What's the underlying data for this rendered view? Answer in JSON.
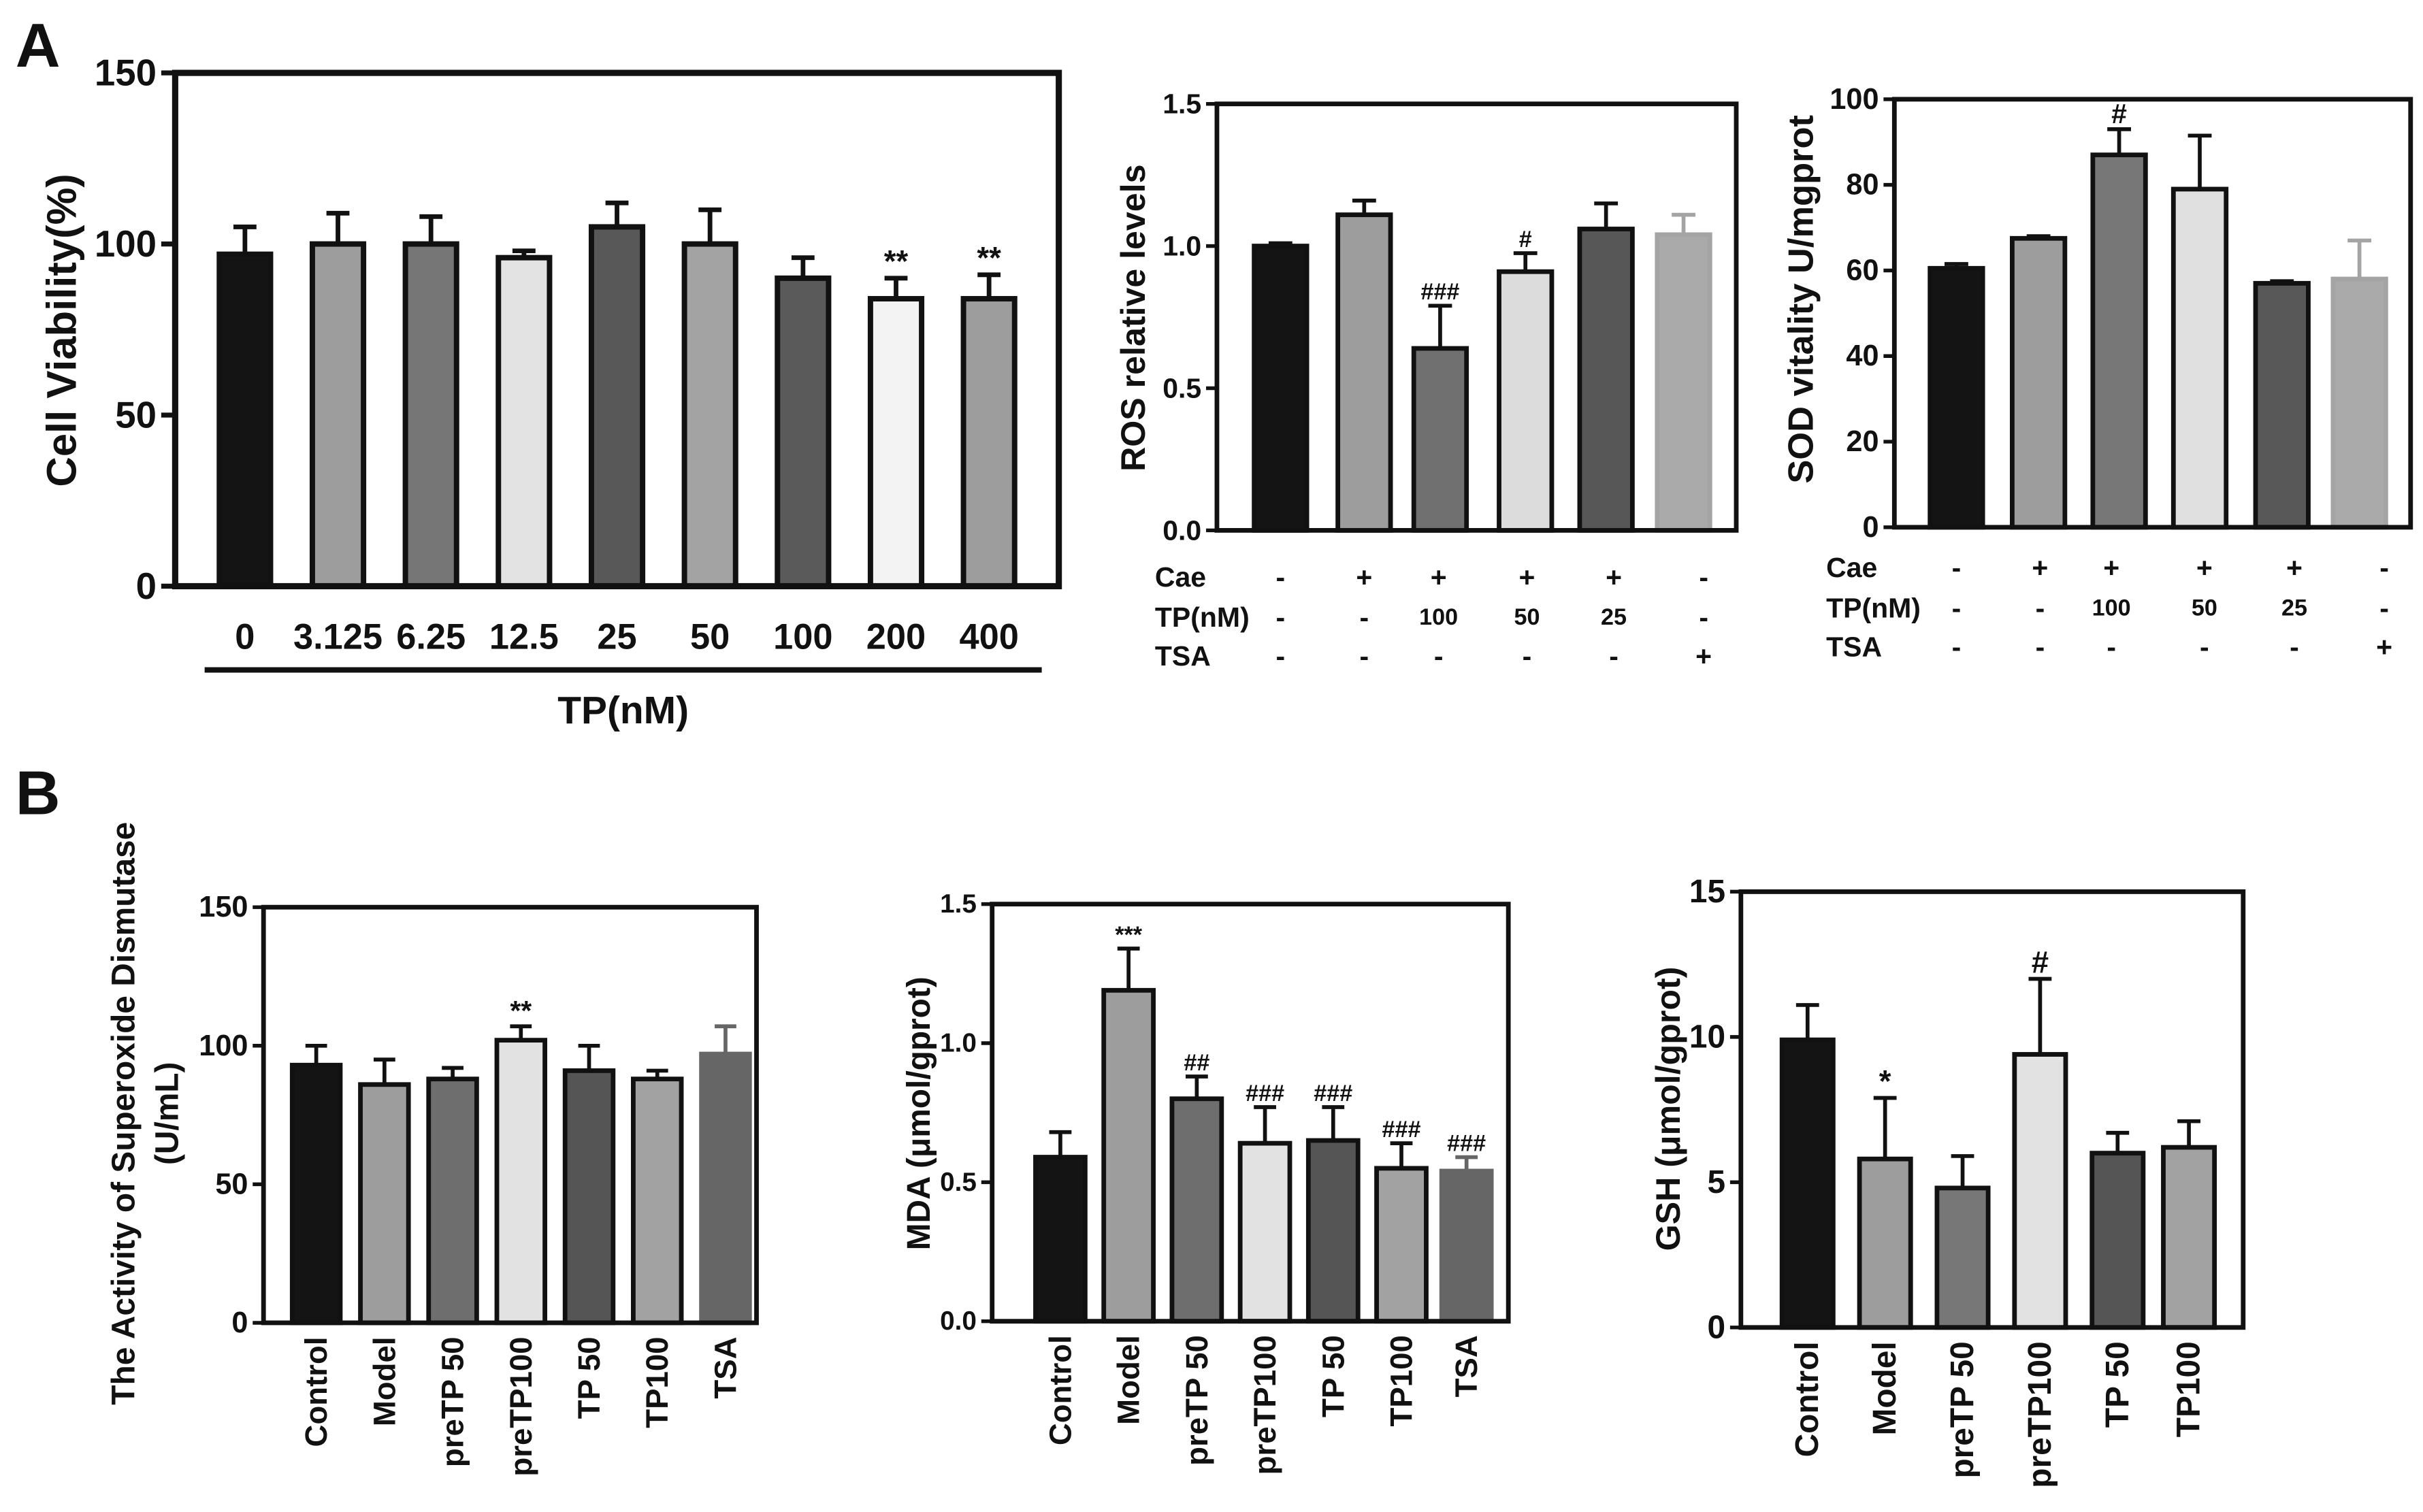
{
  "figure": {
    "panel_a": "A",
    "panel_b": "B"
  },
  "chart_data": [
    {
      "type": "bar",
      "categories": [
        "0",
        "3.125",
        "6.25",
        "12.5",
        "25",
        "50",
        "100",
        "200",
        "400"
      ],
      "values": [
        97,
        100,
        100,
        96,
        105,
        100,
        90,
        84,
        84
      ],
      "errors": [
        8,
        9,
        8,
        2,
        7,
        10,
        6,
        6,
        7
      ],
      "annotations": [
        null,
        null,
        null,
        null,
        null,
        null,
        null,
        "**",
        "**"
      ],
      "xlabel": "TP(nM)",
      "ylabel": [
        "Cell Viability(%)"
      ],
      "ylim": [
        0,
        150
      ],
      "yticks": [
        "0",
        "50",
        "100",
        "150"
      ],
      "bar_colors": [
        "#141414",
        "#9d9d9d",
        "#767676",
        "#e3e3e3",
        "#585858",
        "#a3a3a3",
        "#5a5a5a",
        "#f3f3f3",
        "#9d9d9d"
      ],
      "bar_edges": [
        "#111111",
        "#111111",
        "#111111",
        "#111111",
        "#111111",
        "#111111",
        "#111111",
        "#111111",
        "#111111"
      ]
    },
    {
      "type": "bar",
      "values": [
        1.0,
        1.11,
        0.64,
        0.91,
        1.06,
        1.04
      ],
      "errors": [
        0.01,
        0.05,
        0.15,
        0.065,
        0.09,
        0.07
      ],
      "annotations": [
        null,
        null,
        "###",
        "#",
        null,
        null
      ],
      "ylabel": [
        "ROS relative levels"
      ],
      "ylim": [
        0,
        1.5
      ],
      "yticks": [
        "0.0",
        "0.5",
        "1.0",
        "1.5"
      ],
      "conditions": [
        {
          "label": "Cae",
          "values": [
            "-",
            "+",
            "+",
            "+",
            "+",
            "-"
          ]
        },
        {
          "label": "TP(nM)",
          "values": [
            "-",
            "-",
            "100",
            "50",
            "25",
            "-"
          ]
        },
        {
          "label": "TSA",
          "values": [
            "-",
            "-",
            "-",
            "-",
            "-",
            "+"
          ]
        }
      ],
      "bar_colors": [
        "#141414",
        "#9d9d9d",
        "#707070",
        "#dcdcdc",
        "#575757",
        "#aaaaaa"
      ],
      "bar_edges": [
        "#111111",
        "#111111",
        "#111111",
        "#111111",
        "#111111",
        "#a4a4a4"
      ]
    },
    {
      "type": "bar",
      "values": [
        60.5,
        67.5,
        87,
        79,
        57,
        58
      ],
      "errors": [
        1,
        0.5,
        6,
        12.5,
        0.5,
        9
      ],
      "annotations": [
        null,
        null,
        "#",
        null,
        null,
        null
      ],
      "ylabel": [
        "SOD vitality U/mgprot"
      ],
      "ylim": [
        0,
        100
      ],
      "yticks": [
        "0",
        "20",
        "40",
        "60",
        "80",
        "100"
      ],
      "conditions": [
        {
          "label": "Cae",
          "values": [
            "-",
            "+",
            "+",
            "+",
            "+",
            "-"
          ]
        },
        {
          "label": "TP(nM)",
          "values": [
            "-",
            "-",
            "100",
            "50",
            "25",
            "-"
          ]
        },
        {
          "label": "TSA",
          "values": [
            "-",
            "-",
            "-",
            "-",
            "-",
            "+"
          ]
        }
      ],
      "bar_colors": [
        "#141414",
        "#9d9d9d",
        "#777777",
        "#e0e0e0",
        "#585858",
        "#aaaaaa"
      ],
      "bar_edges": [
        "#111111",
        "#111111",
        "#111111",
        "#111111",
        "#111111",
        "#a4a4a4"
      ]
    },
    {
      "type": "bar",
      "categories": [
        "Control",
        "Model",
        "preTP 50",
        "preTP100",
        "TP 50",
        "TP100",
        "TSA"
      ],
      "values": [
        93,
        86,
        88,
        102,
        91,
        88,
        97
      ],
      "errors": [
        7,
        9,
        4,
        5,
        9,
        3,
        10
      ],
      "annotations": [
        null,
        null,
        null,
        "**",
        null,
        null,
        null
      ],
      "ylabel": [
        "The Activity of Superoxide Dismutase",
        "(U/mL)"
      ],
      "ylim": [
        0,
        150
      ],
      "yticks": [
        "0",
        "50",
        "100",
        "150"
      ],
      "bar_colors": [
        "#141414",
        "#9d9d9d",
        "#6e6e6e",
        "#e2e2e2",
        "#555555",
        "#a2a2a2",
        "#666666"
      ],
      "bar_edges": [
        "#111111",
        "#111111",
        "#111111",
        "#111111",
        "#111111",
        "#111111",
        "#666666"
      ]
    },
    {
      "type": "bar",
      "categories": [
        "Control",
        "Model",
        "preTP 50",
        "preTP100",
        "TP 50",
        "TP100",
        "TSA"
      ],
      "values": [
        0.59,
        1.19,
        0.8,
        0.64,
        0.65,
        0.55,
        0.54
      ],
      "errors": [
        0.09,
        0.15,
        0.08,
        0.13,
        0.12,
        0.09,
        0.05
      ],
      "annotations": [
        null,
        "***",
        "##",
        "###",
        "###",
        "###",
        "###"
      ],
      "ylabel": [
        "MDA (μmol/gprot)"
      ],
      "ylim": [
        0,
        1.5
      ],
      "yticks": [
        "0.0",
        "0.5",
        "1.0",
        "1.5"
      ],
      "bar_colors": [
        "#141414",
        "#9d9d9d",
        "#6e6e6e",
        "#e2e2e2",
        "#555555",
        "#a2a2a2",
        "#666666"
      ],
      "bar_edges": [
        "#111111",
        "#111111",
        "#111111",
        "#111111",
        "#111111",
        "#111111",
        "#666666"
      ]
    },
    {
      "type": "bar",
      "categories": [
        "Control",
        "Model",
        "preTP 50",
        "preTP100",
        "TP 50",
        "TP100"
      ],
      "values": [
        9.9,
        5.8,
        4.8,
        9.4,
        6.0,
        6.2
      ],
      "errors": [
        1.2,
        2.1,
        1.1,
        2.6,
        0.7,
        0.9
      ],
      "annotations": [
        null,
        "*",
        null,
        "#",
        null,
        null
      ],
      "ylabel": [
        "GSH (μmol/gprot)"
      ],
      "ylim": [
        0,
        15
      ],
      "yticks": [
        "0",
        "5",
        "10",
        "15"
      ],
      "bar_colors": [
        "#141414",
        "#9d9d9d",
        "#777777",
        "#e2e2e2",
        "#555555",
        "#a2a2a2"
      ],
      "bar_edges": [
        "#111111",
        "#111111",
        "#111111",
        "#111111",
        "#111111",
        "#111111"
      ]
    }
  ]
}
